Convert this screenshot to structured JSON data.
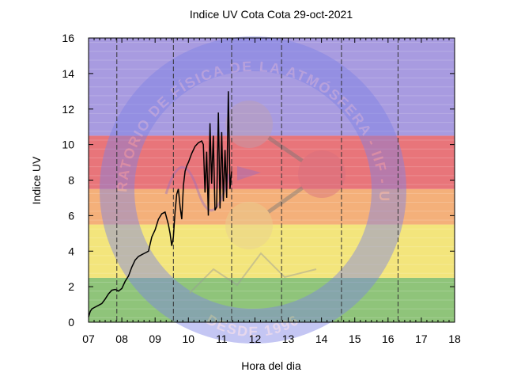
{
  "chart_data": {
    "type": "line",
    "title": "Indice UV Cota Cota 29-oct-2021",
    "xlabel": "Hora del dia",
    "ylabel": "Indice UV",
    "xlim": [
      7,
      18
    ],
    "ylim": [
      0,
      16
    ],
    "x_ticks": [
      7,
      8,
      9,
      10,
      11,
      12,
      13,
      14,
      15,
      16,
      17,
      18
    ],
    "x_tick_labels": [
      "07",
      "08",
      "09",
      "10",
      "11",
      "12",
      "13",
      "14",
      "15",
      "16",
      "17",
      "18"
    ],
    "y_ticks": [
      0,
      2,
      4,
      6,
      8,
      10,
      12,
      14,
      16
    ],
    "y_tick_labels": [
      "0",
      "2",
      "4",
      "6",
      "8",
      "10",
      "12",
      "14",
      "16"
    ],
    "grid": "dashed-vertical",
    "vertical_dashed_lines": [
      7.85,
      9.55,
      11.3,
      12.8,
      14.6,
      16.3
    ],
    "risk_bands": [
      {
        "from": 0,
        "to": 2.5,
        "color": "#8fc47a"
      },
      {
        "from": 2.5,
        "to": 5.5,
        "color": "#f3e57c"
      },
      {
        "from": 5.5,
        "to": 7.5,
        "color": "#f4b07a"
      },
      {
        "from": 7.5,
        "to": 10.5,
        "color": "#e8757a"
      },
      {
        "from": 10.5,
        "to": 16,
        "color": "#a89be0"
      }
    ],
    "series_color": "#000000",
    "x": [
      7.0,
      7.05,
      7.1,
      7.2,
      7.3,
      7.4,
      7.5,
      7.6,
      7.7,
      7.8,
      7.9,
      8.0,
      8.1,
      8.2,
      8.3,
      8.4,
      8.5,
      8.6,
      8.7,
      8.8,
      8.9,
      8.95,
      9.0,
      9.05,
      9.1,
      9.2,
      9.3,
      9.4,
      9.45,
      9.5,
      9.55,
      9.6,
      9.65,
      9.7,
      9.75,
      9.8,
      9.85,
      9.9,
      9.95,
      10.0,
      10.1,
      10.2,
      10.3,
      10.4,
      10.45,
      10.5,
      10.55,
      10.6,
      10.65,
      10.7,
      10.75,
      10.8,
      10.85,
      10.9,
      10.95,
      11.0,
      11.05,
      11.1,
      11.15,
      11.2,
      11.25,
      11.3
    ],
    "y": [
      0.3,
      0.6,
      0.75,
      0.85,
      0.95,
      1.05,
      1.3,
      1.6,
      1.8,
      1.85,
      1.75,
      1.9,
      2.3,
      2.6,
      3.1,
      3.5,
      3.7,
      3.8,
      3.9,
      4.0,
      4.8,
      5.0,
      5.2,
      5.5,
      5.8,
      6.1,
      6.2,
      5.5,
      5.0,
      4.3,
      4.8,
      6.2,
      7.2,
      7.5,
      6.5,
      5.8,
      7.7,
      8.5,
      8.8,
      9.0,
      9.5,
      9.9,
      10.1,
      10.2,
      10.0,
      7.3,
      9.6,
      6.0,
      11.2,
      7.8,
      10.5,
      6.3,
      6.5,
      11.8,
      6.4,
      10.7,
      6.8,
      9.7,
      7.0,
      13.0,
      7.5,
      8.5
    ]
  },
  "watermark": {
    "arc_text": "LABORATORIO DE FÍSICA DE LA ATMÓSFERA - IIF - UMSA",
    "bottom_text": "DESDE 1996"
  }
}
